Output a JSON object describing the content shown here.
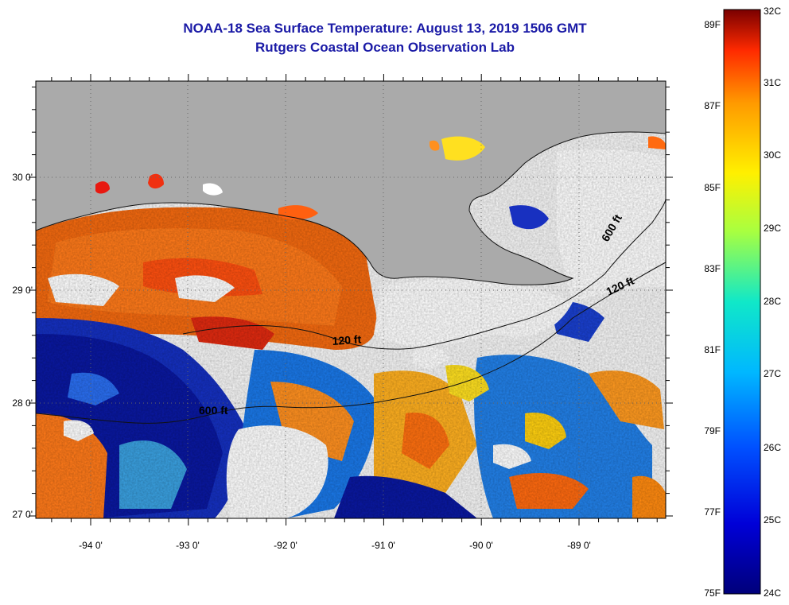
{
  "header": {
    "title": "NOAA-18 Sea Surface Temperature:  August 13, 2019 1506 GMT",
    "subtitle": "Rutgers Coastal Ocean Observation Lab"
  },
  "map": {
    "lat_labels": [
      "30 0'",
      "29 0'",
      "28 0'",
      "27 0'"
    ],
    "lon_labels": [
      "-94 0'",
      "-93 0'",
      "-92 0'",
      "-91 0'",
      "-90 0'",
      "-89 0'"
    ],
    "contour_labels": [
      "120 ft",
      "600 ft",
      "120 ft",
      "600 ft"
    ],
    "colors": {
      "land": "#aaaaaa",
      "cloud": "#ffffff",
      "grid": "#555555"
    }
  },
  "colorbar": {
    "celsius_labels": [
      "32C",
      "31C",
      "30C",
      "29C",
      "28C",
      "27C",
      "26C",
      "25C",
      "24C"
    ],
    "fahrenheit_labels": [
      "89F",
      "87F",
      "85F",
      "83F",
      "81F",
      "79F",
      "77F",
      "75F"
    ],
    "range_c": [
      24,
      32
    ]
  }
}
